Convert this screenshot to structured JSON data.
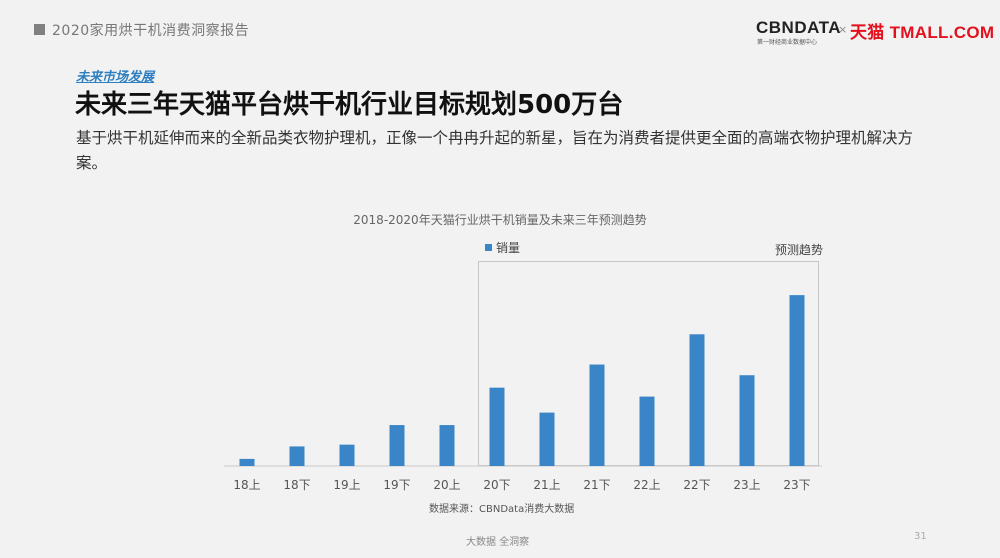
{
  "header": {
    "report_title": "2020家用烘干机消费洞察报告",
    "logo_cbndata": "CBNDATA",
    "logo_cbndata_sub": "第一财经商业数据中心",
    "logo_separator": "×",
    "logo_tmall": "天猫 TMALL.COM"
  },
  "section_tag": "未来市场发展",
  "main_title": "未来三年天猫平台烘干机行业目标规划500万台",
  "description": "基于烘干机延伸而来的全新品类衣物护理机，正像一个冉冉升起的新星，旨在为消费者提供更全面的高端衣物护理机解决方案。",
  "chart_data": {
    "type": "bar",
    "title": "2018-2020年天猫行业烘干机销量及未来三年预测趋势",
    "categories": [
      "18上",
      "18下",
      "19上",
      "19下",
      "20上",
      "20下",
      "21上",
      "21下",
      "22上",
      "22下",
      "23上",
      "23下"
    ],
    "series": [
      {
        "name": "销量",
        "values": [
          4,
          11,
          12,
          23,
          23,
          44,
          30,
          57,
          39,
          74,
          51,
          96
        ]
      }
    ],
    "forecast_label": "预测趋势",
    "forecast_from_category": "20下",
    "ylim": [
      0,
      100
    ],
    "grid": false,
    "legend_position": "top-left",
    "colors": {
      "bar": "#3a85c7"
    }
  },
  "source": "数据来源：CBNData消费大数据",
  "footer": "大数据 全洞察",
  "page_number": "31"
}
